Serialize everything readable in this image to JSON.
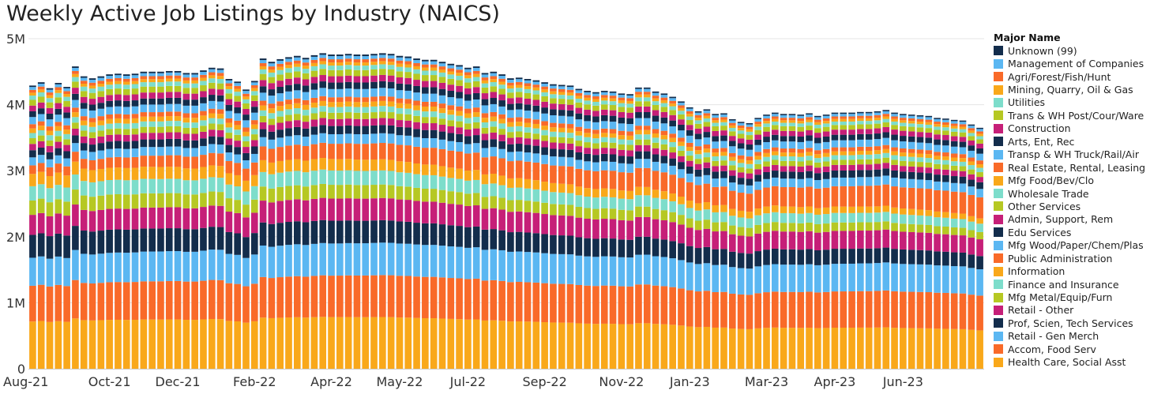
{
  "chart_data": {
    "type": "stacked-bar",
    "title": "Weekly Active Job Listings by Industry (NAICS)",
    "ylim": [
      0,
      5000000
    ],
    "y_ticks": [
      {
        "value": 0,
        "label": "0"
      },
      {
        "value": 1000000,
        "label": "1M"
      },
      {
        "value": 2000000,
        "label": "2M"
      },
      {
        "value": 3000000,
        "label": "3M"
      },
      {
        "value": 4000000,
        "label": "4M"
      },
      {
        "value": 5000000,
        "label": "5M"
      }
    ],
    "x_tick_labels": [
      {
        "label": "Aug-21",
        "week_index": 0
      },
      {
        "label": "Oct-21",
        "week_index": 9
      },
      {
        "label": "Dec-21",
        "week_index": 17
      },
      {
        "label": "Feb-22",
        "week_index": 26
      },
      {
        "label": "Apr-22",
        "week_index": 35
      },
      {
        "label": "May-22",
        "week_index": 43
      },
      {
        "label": "Jul-22",
        "week_index": 51
      },
      {
        "label": "Sep-22",
        "week_index": 60
      },
      {
        "label": "Nov-22",
        "week_index": 69
      },
      {
        "label": "Jan-23",
        "week_index": 77
      },
      {
        "label": "Mar-23",
        "week_index": 86
      },
      {
        "label": "Apr-23",
        "week_index": 94
      },
      {
        "label": "Jun-23",
        "week_index": 102
      }
    ],
    "weeks": 112,
    "week_totals": [
      4290000,
      4340000,
      4250000,
      4330000,
      4270000,
      4580000,
      4430000,
      4400000,
      4430000,
      4460000,
      4470000,
      4460000,
      4470000,
      4500000,
      4500000,
      4500000,
      4510000,
      4510000,
      4480000,
      4480000,
      4520000,
      4560000,
      4550000,
      4390000,
      4350000,
      4230000,
      4360000,
      4700000,
      4650000,
      4690000,
      4720000,
      4740000,
      4710000,
      4750000,
      4780000,
      4760000,
      4760000,
      4770000,
      4760000,
      4760000,
      4770000,
      4780000,
      4770000,
      4740000,
      4730000,
      4700000,
      4680000,
      4680000,
      4650000,
      4620000,
      4600000,
      4560000,
      4580000,
      4480000,
      4500000,
      4460000,
      4400000,
      4410000,
      4390000,
      4370000,
      4340000,
      4310000,
      4300000,
      4290000,
      4240000,
      4210000,
      4190000,
      4210000,
      4200000,
      4170000,
      4160000,
      4260000,
      4260000,
      4200000,
      4170000,
      4120000,
      4050000,
      3960000,
      3900000,
      3930000,
      3860000,
      3870000,
      3780000,
      3740000,
      3720000,
      3800000,
      3850000,
      3880000,
      3860000,
      3860000,
      3850000,
      3870000,
      3830000,
      3850000,
      3880000,
      3880000,
      3880000,
      3890000,
      3890000,
      3900000,
      3920000,
      3880000,
      3860000,
      3850000,
      3840000,
      3830000,
      3800000,
      3790000,
      3770000,
      3760000,
      3700000,
      3650000
    ],
    "series": [
      {
        "name": "Health Care, Social Asst",
        "color": "#F9A81A",
        "start": 0.165,
        "end": 0.16
      },
      {
        "name": "Accom, Food Serv",
        "color": "#F96A29",
        "start": 0.125,
        "end": 0.145
      },
      {
        "name": "Retail - Gen Merch",
        "color": "#5BB7F2",
        "start": 0.098,
        "end": 0.11
      },
      {
        "name": "Prof, Scien, Tech Services",
        "color": "#132D4C",
        "start": 0.08,
        "end": 0.055
      },
      {
        "name": "Retail - Other",
        "color": "#C61F78",
        "start": 0.07,
        "end": 0.07
      },
      {
        "name": "Mfg Metal/Equip/Furn",
        "color": "#B6C823",
        "start": 0.05,
        "end": 0.03
      },
      {
        "name": "Finance and Insurance",
        "color": "#7DDDCB",
        "start": 0.05,
        "end": 0.035
      },
      {
        "name": "Information",
        "color": "#F9A81A",
        "start": 0.043,
        "end": 0.022
      },
      {
        "name": "Public Administration",
        "color": "#F96A29",
        "start": 0.03,
        "end": 0.088
      },
      {
        "name": "Mfg Wood/Paper/Chem/Plas",
        "color": "#5BB7F2",
        "start": 0.028,
        "end": 0.035
      },
      {
        "name": "Edu Services",
        "color": "#132D4C",
        "start": 0.025,
        "end": 0.028
      },
      {
        "name": "Admin, Support, Rem",
        "color": "#C61F78",
        "start": 0.022,
        "end": 0.022
      },
      {
        "name": "Other Services",
        "color": "#B6C823",
        "start": 0.02,
        "end": 0.02
      },
      {
        "name": "Wholesale Trade",
        "color": "#7DDDCB",
        "start": 0.018,
        "end": 0.018
      },
      {
        "name": "Mfg Food/Bev/Clo",
        "color": "#F9A81A",
        "start": 0.016,
        "end": 0.015
      },
      {
        "name": "Real Estate, Rental, Leasing",
        "color": "#F96A29",
        "start": 0.015,
        "end": 0.016
      },
      {
        "name": "Transp & WH Truck/Rail/Air",
        "color": "#5BB7F2",
        "start": 0.025,
        "end": 0.028
      },
      {
        "name": "Arts, Ent, Rec",
        "color": "#132D4C",
        "start": 0.02,
        "end": 0.022
      },
      {
        "name": "Construction",
        "color": "#C61F78",
        "start": 0.02,
        "end": 0.02
      },
      {
        "name": "Trans & WH Post/Cour/Ware",
        "color": "#B6C823",
        "start": 0.02,
        "end": 0.018
      },
      {
        "name": "Utilities",
        "color": "#7DDDCB",
        "start": 0.015,
        "end": 0.013
      },
      {
        "name": "Mining, Quarry, Oil & Gas",
        "color": "#F9A81A",
        "start": 0.01,
        "end": 0.01
      },
      {
        "name": "Agri/Forest/Fish/Hunt",
        "color": "#F96A29",
        "start": 0.01,
        "end": 0.01
      },
      {
        "name": "Management of Companies",
        "color": "#5BB7F2",
        "start": 0.01,
        "end": 0.01
      },
      {
        "name": "Unknown (99)",
        "color": "#132D4C",
        "start": 0.005,
        "end": 0.005
      }
    ],
    "legend_title": "Major Name",
    "legend_placement": "right"
  }
}
